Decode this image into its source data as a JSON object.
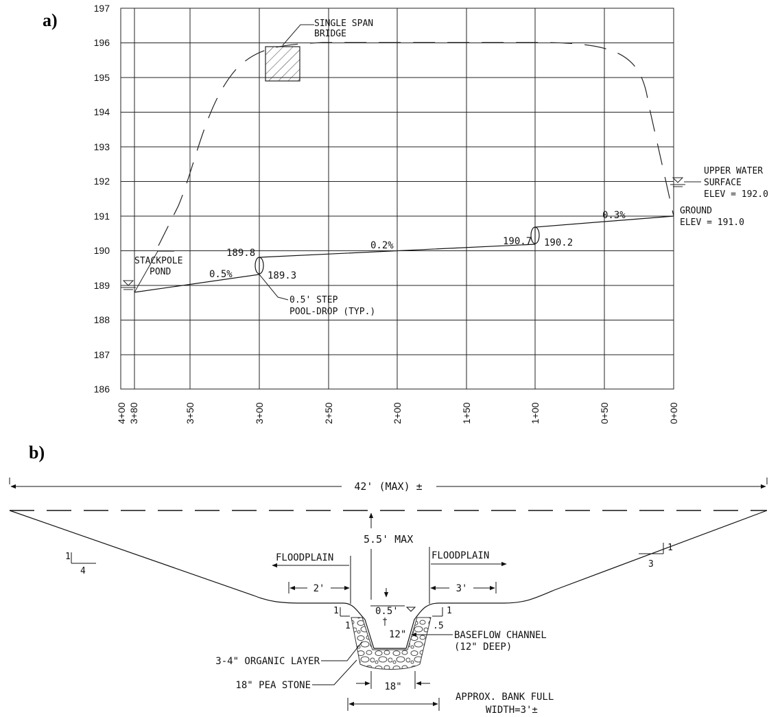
{
  "panel_a": {
    "label": "a)",
    "y_ticks": [
      "197",
      "196",
      "195",
      "194",
      "193",
      "192",
      "191",
      "190",
      "189",
      "188",
      "187",
      "186"
    ],
    "x_ticks": [
      "4+00",
      "3+80",
      "3+50",
      "3+00",
      "2+50",
      "2+00",
      "1+50",
      "1+00",
      "0+50",
      "0+00"
    ],
    "bridge_label_1": "SINGLE SPAN",
    "bridge_label_2": "BRIDGE",
    "pond_label_1": "STACKPOLE",
    "pond_label_2": "POND",
    "upper_water_1": "UPPER WATER",
    "upper_water_2": "SURFACE",
    "upper_water_3": "ELEV = 192.0",
    "ground_1": "GROUND",
    "ground_2": "ELEV = 191.0",
    "elev_190_7": "190.7",
    "elev_190_2": "190.2",
    "elev_189_8": "189.8",
    "elev_189_3": "189.3",
    "slope_0_3": "0.3%",
    "slope_0_2": "0.2%",
    "slope_0_5": "0.5%",
    "step_label_1": "0.5' STEP",
    "step_label_2": "POOL-DROP (TYP.)"
  },
  "panel_b": {
    "label": "b)",
    "width_label": "42' (MAX) ±",
    "depth_label": "5.5' MAX",
    "floodplain_left": "FLOODPLAIN",
    "floodplain_right": "FLOODPLAIN",
    "dim_2ft": "2'",
    "dim_3ft": "3'",
    "dim_0_5": "0.5'",
    "dim_12in": "12\"",
    "dim_18in": "18\"",
    "slope_left_rise": "1",
    "slope_left_run": "4",
    "slope_right_rise": "1",
    "slope_right_run": "3",
    "bank_left_1": "1",
    "bank_left_2": "1",
    "bank_right_1": "1",
    "bank_right_2": ".5",
    "baseflow_1": "BASEFLOW CHANNEL",
    "baseflow_2": "(12\" DEEP)",
    "organic": "3-4\" ORGANIC LAYER",
    "pea_stone": "18\" PEA STONE",
    "bankfull_1": "APPROX. BANK FULL",
    "bankfull_2": "WIDTH=3'±"
  }
}
